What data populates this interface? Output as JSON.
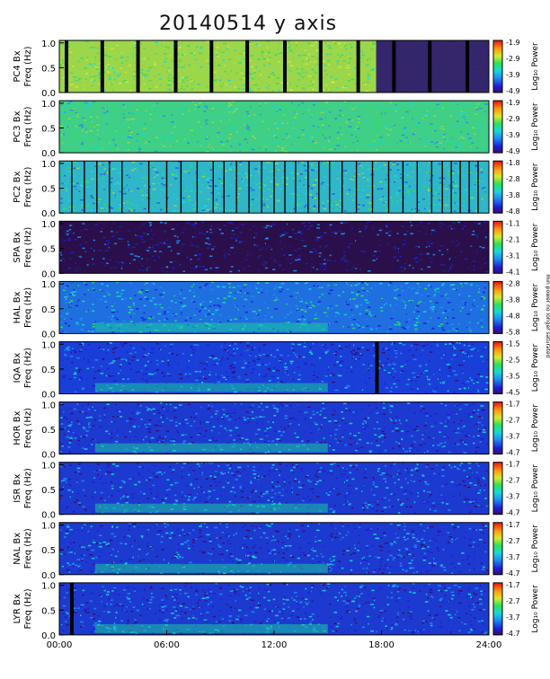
{
  "chart_data": {
    "type": "heatmap",
    "title": "20140514 y axis",
    "xlabel": "",
    "x_tick_labels": [
      "00:00",
      "06:00",
      "12:00",
      "18:00",
      "24:00"
    ],
    "x_range_hours": [
      0,
      24
    ],
    "colorbar_label": "Log₁₀ Power",
    "side_note": "min power no longer saturated",
    "panels": [
      {
        "station": "PC4",
        "ylabel_1": "PC4 Bx",
        "ylabel_2": "Freq (Hz)",
        "y_ticks": [
          "1.0",
          "0.5",
          "0.0"
        ],
        "ylim": [
          0,
          1.05
        ],
        "colorbar_ticks": [
          "-1.9",
          "-2.9",
          "-3.9",
          "-4.9"
        ],
        "clim": [
          -4.9,
          -1.9
        ],
        "gaps_hours": [
          0.4,
          2.4,
          4.4,
          6.5,
          8.5,
          10.5,
          12.6,
          14.6,
          16.7,
          18.7,
          20.7,
          22.8
        ]
      },
      {
        "station": "PC3",
        "ylabel_1": "PC3 Bx",
        "ylabel_2": "Freq (Hz)",
        "y_ticks": [
          "1.0",
          "0.5",
          "0.0"
        ],
        "ylim": [
          0,
          1.05
        ],
        "colorbar_ticks": [
          "-1.9",
          "-2.9",
          "-3.9",
          "-4.9"
        ],
        "clim": [
          -4.9,
          -1.9
        ],
        "gaps_hours": []
      },
      {
        "station": "PC2",
        "ylabel_1": "PC2 Bx",
        "ylabel_2": "Freq (Hz)",
        "y_ticks": [
          "1.0",
          "0.5",
          "0.0"
        ],
        "ylim": [
          0,
          1.05
        ],
        "colorbar_ticks": [
          "-1.8",
          "-2.8",
          "-3.8",
          "-4.8"
        ],
        "clim": [
          -4.8,
          -1.8
        ],
        "gaps_hours": [
          0.7,
          1.4,
          2.1,
          2.8,
          3.5,
          5.0,
          6.0,
          6.8,
          7.7,
          8.6,
          9.2,
          9.9,
          10.6,
          11.3,
          12.0,
          12.6,
          13.2,
          13.9,
          14.5,
          15.1,
          15.8,
          16.6,
          17.5,
          18.4,
          19.2,
          20.0,
          20.8,
          21.4,
          21.9,
          22.4,
          22.9,
          23.4
        ]
      },
      {
        "station": "SPA",
        "ylabel_1": "SPA Bx",
        "ylabel_2": "Freq (Hz)",
        "y_ticks": [
          "1.0",
          "0.5",
          "0.0"
        ],
        "ylim": [
          0,
          1.05
        ],
        "colorbar_ticks": [
          "-1.1",
          "-2.1",
          "-3.1",
          "-4.1"
        ],
        "clim": [
          -4.1,
          -1.1
        ],
        "gaps_hours": []
      },
      {
        "station": "HAL",
        "ylabel_1": "HAL Bx",
        "ylabel_2": "Freq (Hz)",
        "y_ticks": [
          "1.0",
          "0.5",
          "0.0"
        ],
        "ylim": [
          0,
          1.05
        ],
        "colorbar_ticks": [
          "-2.8",
          "-3.8",
          "-4.8",
          "-5.8"
        ],
        "clim": [
          -5.8,
          -2.8
        ],
        "gaps_hours": []
      },
      {
        "station": "IQA",
        "ylabel_1": "IQA Bx",
        "ylabel_2": "Freq (Hz)",
        "y_ticks": [
          "1.0",
          "0.5",
          "0.0"
        ],
        "ylim": [
          0,
          1.05
        ],
        "colorbar_ticks": [
          "-1.5",
          "-2.5",
          "-3.5",
          "-4.5"
        ],
        "clim": [
          -4.5,
          -1.5
        ],
        "gaps_hours": [
          17.75
        ]
      },
      {
        "station": "HOR",
        "ylabel_1": "HOR Bx",
        "ylabel_2": "Freq (Hz)",
        "y_ticks": [
          "1.0",
          "0.5",
          "0.0"
        ],
        "ylim": [
          0,
          1.05
        ],
        "colorbar_ticks": [
          "-1.7",
          "-2.7",
          "-3.7",
          "-4.7"
        ],
        "clim": [
          -4.7,
          -1.7
        ],
        "gaps_hours": []
      },
      {
        "station": "ISR",
        "ylabel_1": "ISR Bx",
        "ylabel_2": "Freq (Hz)",
        "y_ticks": [
          "1.0",
          "0.5",
          "0.0"
        ],
        "ylim": [
          0,
          1.05
        ],
        "colorbar_ticks": [
          "-1.7",
          "-2.7",
          "-3.7",
          "-4.7"
        ],
        "clim": [
          -4.7,
          -1.7
        ],
        "gaps_hours": []
      },
      {
        "station": "NAL",
        "ylabel_1": "NAL Bx",
        "ylabel_2": "Freq (Hz)",
        "y_ticks": [
          "1.0",
          "0.5",
          "0.0"
        ],
        "ylim": [
          0,
          1.05
        ],
        "colorbar_ticks": [
          "-1.7",
          "-2.7",
          "-3.7",
          "-4.7"
        ],
        "clim": [
          -4.7,
          -1.7
        ],
        "gaps_hours": []
      },
      {
        "station": "LYR",
        "ylabel_1": "LYR Bx",
        "ylabel_2": "Freq (Hz)",
        "y_ticks": [
          "1.0",
          "0.5",
          "0.0"
        ],
        "ylim": [
          0,
          1.05
        ],
        "colorbar_ticks": [
          "-1.7",
          "-2.7",
          "-3.7",
          "-4.7"
        ],
        "clim": [
          -4.7,
          -1.7
        ],
        "gaps_hours": [
          0.7
        ]
      }
    ]
  }
}
